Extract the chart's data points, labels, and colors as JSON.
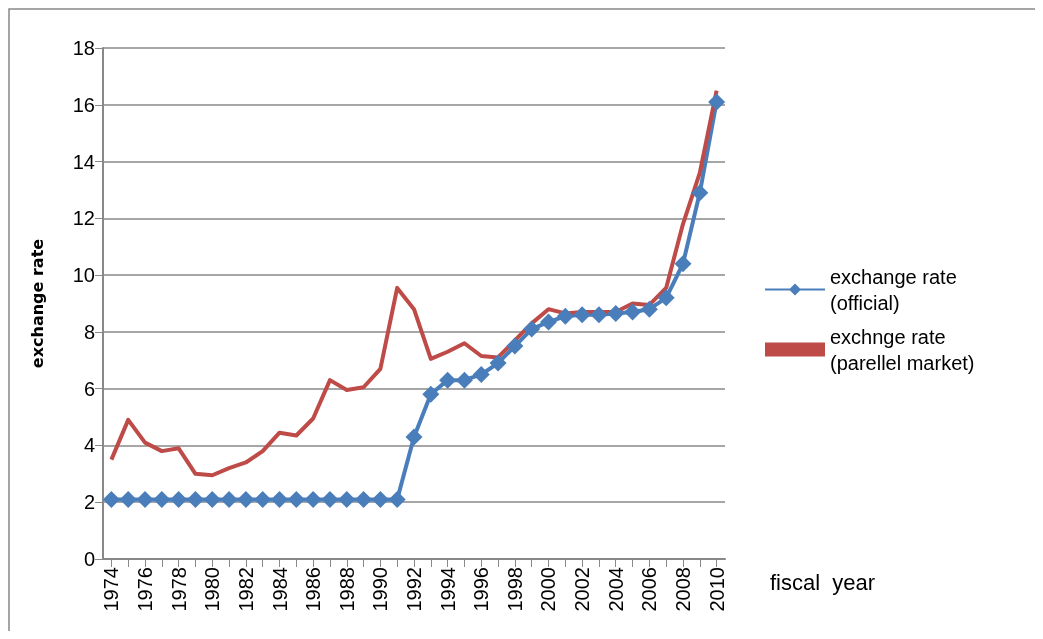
{
  "chart_data": {
    "type": "line",
    "xlabel": "fiscal  year",
    "ylabel": "exchange rate",
    "categories": [
      "1974",
      null,
      "1976",
      null,
      "1978",
      null,
      "1980",
      null,
      "1982",
      null,
      "1984",
      null,
      "1986",
      null,
      "1988",
      null,
      "1990",
      null,
      "1992",
      null,
      "1994",
      null,
      "1996",
      null,
      "1998",
      null,
      "2000",
      null,
      "2002",
      null,
      "2004",
      null,
      "2006",
      null,
      "2008",
      null,
      "2010"
    ],
    "series": [
      {
        "name": "exchange rate (official)",
        "color": "#4a7ebb",
        "marker": "diamond",
        "values": [
          2.1,
          2.1,
          2.1,
          2.1,
          2.1,
          2.1,
          2.1,
          2.1,
          2.1,
          2.1,
          2.1,
          2.1,
          2.1,
          2.1,
          2.1,
          2.1,
          2.1,
          2.1,
          4.3,
          5.8,
          6.3,
          6.3,
          6.5,
          6.9,
          7.5,
          8.1,
          8.35,
          8.55,
          8.6,
          8.6,
          8.65,
          8.7,
          8.8,
          9.2,
          10.4,
          12.9,
          16.1
        ]
      },
      {
        "name": "exchnge rate (parellel market)",
        "color": "#be4b48",
        "values": [
          3.5,
          4.9,
          4.1,
          3.8,
          3.9,
          3.0,
          2.95,
          3.2,
          3.4,
          3.8,
          4.45,
          4.35,
          4.95,
          6.3,
          5.95,
          6.05,
          6.7,
          9.55,
          8.8,
          7.05,
          7.3,
          7.6,
          7.15,
          7.1,
          7.7,
          8.3,
          8.8,
          8.65,
          8.7,
          8.7,
          8.7,
          9.0,
          8.95,
          9.55,
          11.8,
          13.6,
          16.5
        ]
      }
    ],
    "ylim": [
      0,
      18
    ],
    "yticks": [
      0,
      2,
      4,
      6,
      8,
      10,
      12,
      14,
      16,
      18
    ],
    "grid": "y",
    "legend": "right"
  }
}
